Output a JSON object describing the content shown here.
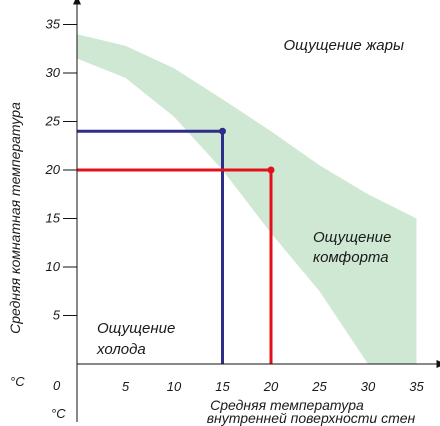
{
  "chart_data": {
    "type": "line",
    "title": "",
    "xlabel_lines": [
      "Средняя температура",
      "внутренней поверхности стен"
    ],
    "ylabel": "Средняя комнатная температура",
    "x_unit": "°C",
    "y_unit": "°C",
    "origin_label": "0",
    "xlim": [
      0,
      35
    ],
    "ylim": [
      0,
      35
    ],
    "x_ticks": [
      5,
      10,
      15,
      20,
      25,
      30,
      35
    ],
    "y_ticks": [
      5,
      10,
      15,
      20,
      25,
      30,
      35
    ],
    "grid": false,
    "comfort_zone": {
      "upper_boundary": [
        {
          "x": 0,
          "y": 34
        },
        {
          "x": 5,
          "y": 32.8
        },
        {
          "x": 10,
          "y": 30.5
        },
        {
          "x": 15,
          "y": 27.3
        },
        {
          "x": 20,
          "y": 24
        },
        {
          "x": 25,
          "y": 20.5
        },
        {
          "x": 30,
          "y": 17.5
        },
        {
          "x": 35,
          "y": 15
        }
      ],
      "lower_boundary": [
        {
          "x": 0,
          "y": 31.5
        },
        {
          "x": 5,
          "y": 29.5
        },
        {
          "x": 10,
          "y": 25.5
        },
        {
          "x": 15,
          "y": 20
        },
        {
          "x": 20,
          "y": 13.5
        },
        {
          "x": 25,
          "y": 7.5
        },
        {
          "x": 28,
          "y": 3
        },
        {
          "x": 30,
          "y": 0
        },
        {
          "x": 35,
          "y": 0
        }
      ],
      "color": "#cfe8d4"
    },
    "series": [
      {
        "point": {
          "x": 15,
          "y": 24
        },
        "color": "#2e2e8a"
      },
      {
        "point": {
          "x": 20,
          "y": 20
        },
        "color": "#e3101c"
      }
    ],
    "annotations": {
      "heat": "Ощущение жары",
      "comfort": [
        "Ощущение",
        "комфорта"
      ],
      "cold": [
        "Ощущение",
        "холода"
      ]
    }
  }
}
